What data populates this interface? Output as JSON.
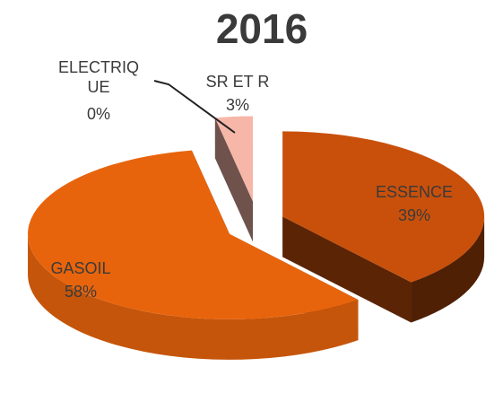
{
  "chart_data": {
    "type": "pie",
    "title": "2016",
    "categories": [
      "ESSENCE",
      "GASOIL",
      "ELECTRIQUE",
      "SR ET R"
    ],
    "values": [
      39,
      58,
      0,
      3
    ],
    "value_labels": [
      "39%",
      "58%",
      "0%",
      "3%"
    ],
    "colors": [
      "#c9500b",
      "#e8640c",
      "#6e2c1c",
      "#f6b7a9"
    ]
  }
}
